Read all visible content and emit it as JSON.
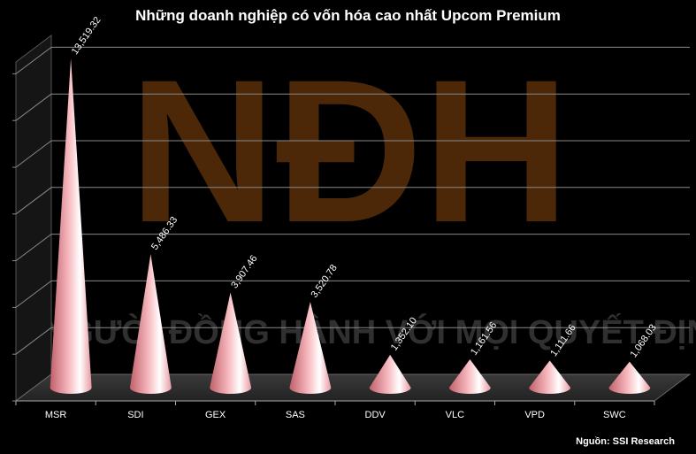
{
  "header": {
    "title": "Những doanh nghiệp có vốn hóa cao nhất Upcom Premium"
  },
  "footer": {
    "source": "Nguồn: SSI Research"
  },
  "watermark": {
    "logo_text": "NĐH",
    "tagline": "NGƯỜI ĐỒNG HÀNH VỚI MỌI QUYẾT ĐỊNH"
  },
  "colors": {
    "background": "#000000",
    "cone_light": "#ffffff",
    "cone_mid": "#f7b9bf",
    "cone_dark": "#c0606a",
    "grid": "#9a9a9a",
    "watermark": "#8a4a10"
  },
  "chart_data": {
    "type": "bar",
    "shape": "cone-3d",
    "title": "Những doanh nghiệp có vốn hóa cao nhất Upcom Premium",
    "categories": [
      "MSR",
      "SDI",
      "GEX",
      "SAS",
      "DDV",
      "VLC",
      "VPD",
      "SWC"
    ],
    "values": [
      13519.32,
      5486.33,
      3907.46,
      3520.78,
      1352.1,
      1161.56,
      1111.66,
      1068.03
    ],
    "value_labels": [
      "13,519.32",
      "5,486.33",
      "3,907.46",
      "3,520.78",
      "1,352.10",
      "1,161.56",
      "1,111.66",
      "1,068.03"
    ],
    "ylim": [
      0,
      14000
    ],
    "grid": true,
    "legend": "none"
  }
}
